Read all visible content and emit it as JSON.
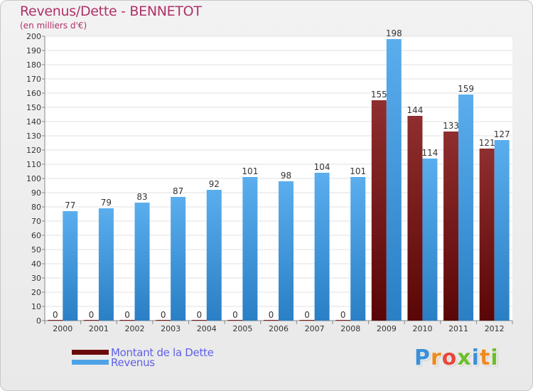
{
  "header": {
    "title": "Revenus/Dette - BENNETOT",
    "subtitle": "(en milliers d'€)"
  },
  "chart_data": {
    "type": "bar",
    "title": "Revenus/Dette - BENNETOT",
    "ylabel": "(en milliers d'€)",
    "xlabel": "",
    "ylim": [
      0,
      200
    ],
    "y_ticks": [
      0,
      10,
      20,
      30,
      40,
      50,
      60,
      70,
      80,
      90,
      100,
      110,
      120,
      130,
      140,
      150,
      160,
      170,
      180,
      190,
      200
    ],
    "grid": "horizontal",
    "legend_position": "bottom-left",
    "categories": [
      "2000",
      "2001",
      "2002",
      "2003",
      "2004",
      "2005",
      "2006",
      "2007",
      "2008",
      "2009",
      "2010",
      "2011",
      "2012"
    ],
    "series": [
      {
        "name": "Montant de la Dette",
        "color": "#7b1a1a",
        "values": [
          0,
          0,
          0,
          0,
          0,
          0,
          0,
          0,
          0,
          155,
          144,
          133,
          121
        ]
      },
      {
        "name": "Revenus",
        "color": "#4ea3e6",
        "values": [
          77,
          79,
          83,
          87,
          92,
          101,
          98,
          104,
          101,
          198,
          114,
          159,
          127
        ]
      }
    ]
  },
  "legend": {
    "items": [
      {
        "label": "Montant de la Dette",
        "color": "#6a0a0a"
      },
      {
        "label": "Revenus",
        "color": "#4ea3e6"
      }
    ]
  },
  "logo": {
    "letters": [
      "P",
      "r",
      "o",
      "x",
      "i",
      "t",
      "i"
    ],
    "colors": [
      "#3a8fd9",
      "#f08a1c",
      "#e8463c",
      "#6cbf2a",
      "#3a8fd9",
      "#f08a1c",
      "#6cbf2a"
    ]
  }
}
